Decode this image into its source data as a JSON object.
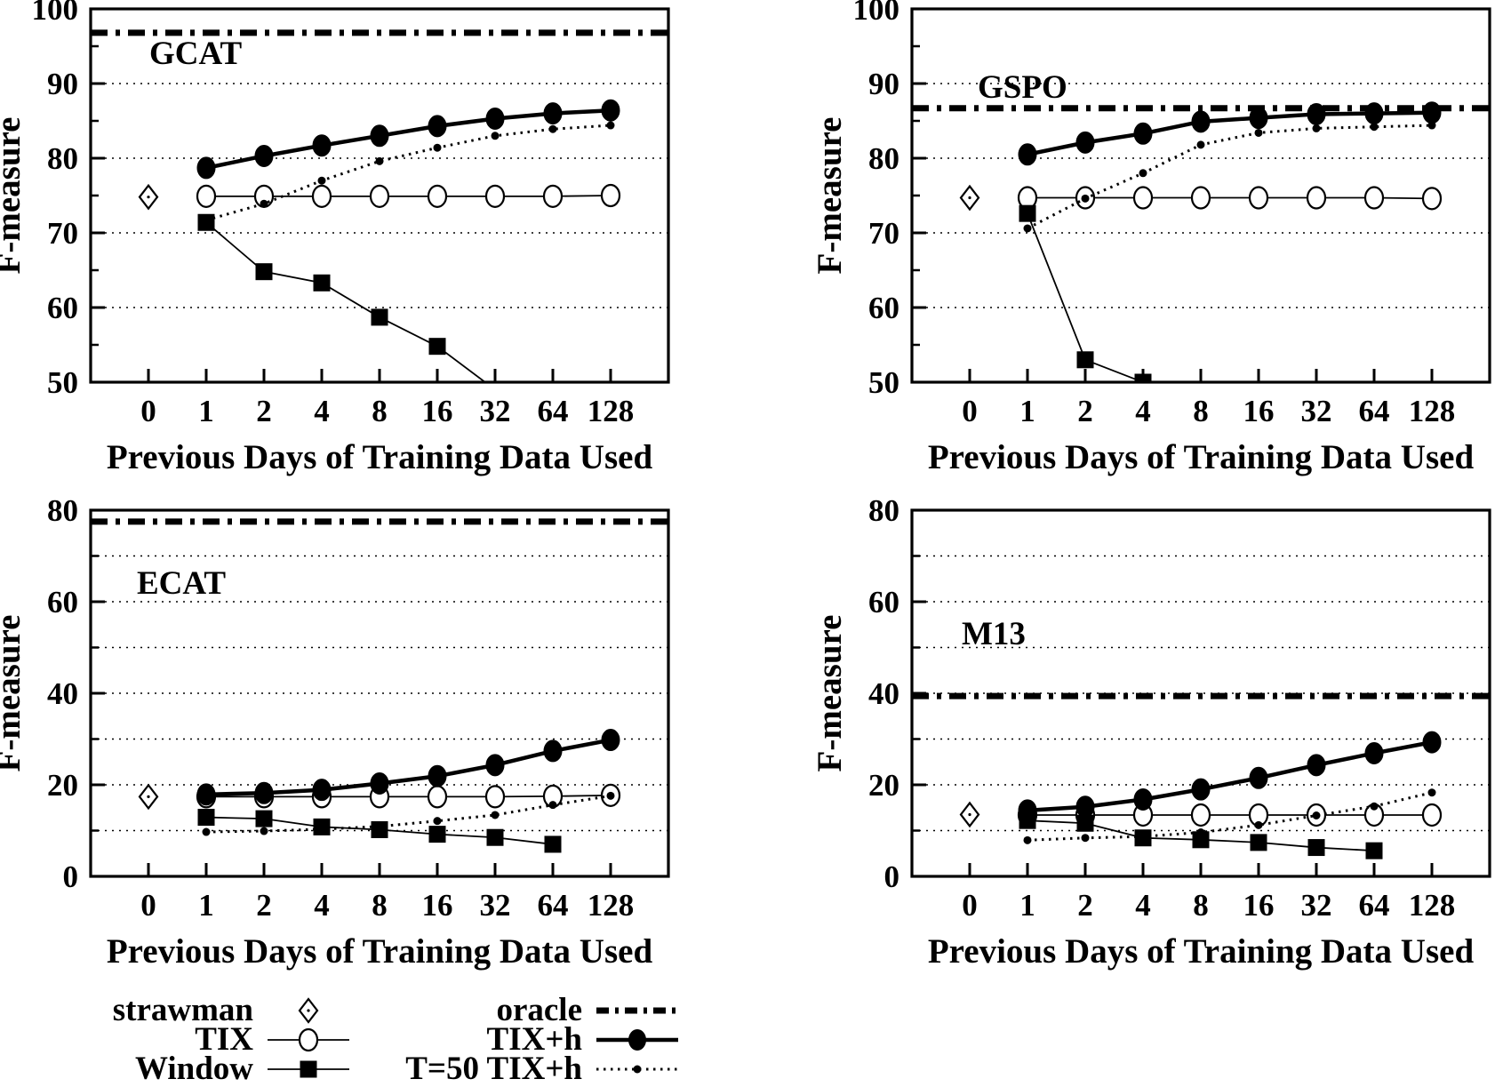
{
  "colors": {
    "foreground": "#000000",
    "background": "#ffffff"
  },
  "figure": {
    "x_axis_label": "Previous Days of Training Data Used",
    "y_axis_label": "F-measure",
    "x_tick_labels": [
      "0",
      "1",
      "2",
      "4",
      "8",
      "16",
      "32",
      "64",
      "128"
    ]
  },
  "legend": {
    "columns": [
      [
        {
          "label": "strawman"
        },
        {
          "label": "TIX"
        },
        {
          "label": "Window"
        }
      ],
      [
        {
          "label": "oracle"
        },
        {
          "label": "TIX+h"
        },
        {
          "label": "T=50 TIX+h"
        }
      ]
    ]
  },
  "chart_data": [
    {
      "type": "line",
      "title": "GCAT",
      "xlabel": "Previous Days of Training Data Used",
      "ylabel": "F-measure",
      "x_categories": [
        0,
        1,
        2,
        4,
        8,
        16,
        32,
        64,
        128
      ],
      "x_scale": "equally-spaced categories (powers of 2)",
      "ylim": [
        50,
        100
      ],
      "y_major_ticks": [
        50,
        60,
        70,
        80,
        90,
        100
      ],
      "y_minor_ticks": [
        55,
        65,
        75,
        85,
        95
      ],
      "y_gridlines": [
        60,
        70,
        80,
        90
      ],
      "series": [
        {
          "name": "oracle",
          "line": "thick-dash-dot",
          "y_const": 96.8
        },
        {
          "name": "TIX",
          "line": "thin-solid",
          "marker": "open-circle",
          "x": [
            1,
            2,
            4,
            8,
            16,
            32,
            64,
            128
          ],
          "y": [
            74.9,
            74.9,
            74.9,
            74.9,
            74.9,
            74.9,
            74.9,
            75.0
          ]
        },
        {
          "name": "Window",
          "line": "thin-solid",
          "marker": "filled-square",
          "x": [
            1,
            2,
            4,
            8,
            16,
            32
          ],
          "y": [
            71.4,
            64.8,
            63.3,
            58.7,
            54.8,
            49.0
          ],
          "note": "line exits below axis minimum between x=16 and x=32"
        },
        {
          "name": "T=50 TIX+h",
          "line": "dotted",
          "marker": "small-dot",
          "x": [
            1,
            2,
            4,
            8,
            16,
            32,
            64,
            128
          ],
          "y": [
            71.7,
            73.9,
            77.0,
            79.6,
            81.4,
            83.0,
            83.9,
            84.4
          ]
        },
        {
          "name": "TIX+h",
          "line": "thick-solid",
          "marker": "filled-circle",
          "x": [
            1,
            2,
            4,
            8,
            16,
            32,
            64,
            128
          ],
          "y": [
            78.7,
            80.3,
            81.7,
            83.0,
            84.3,
            85.3,
            86.0,
            86.4
          ]
        },
        {
          "name": "strawman",
          "marker": "open-diamond",
          "x": [
            0
          ],
          "y": [
            74.8
          ]
        }
      ]
    },
    {
      "type": "line",
      "title": "GSPO",
      "xlabel": "Previous Days of Training Data Used",
      "ylabel": "F-measure",
      "x_categories": [
        0,
        1,
        2,
        4,
        8,
        16,
        32,
        64,
        128
      ],
      "x_scale": "equally-spaced categories (powers of 2)",
      "ylim": [
        50,
        100
      ],
      "y_major_ticks": [
        50,
        60,
        70,
        80,
        90,
        100
      ],
      "y_minor_ticks": [
        55,
        65,
        75,
        85,
        95
      ],
      "y_gridlines": [
        60,
        70,
        80,
        90
      ],
      "series": [
        {
          "name": "oracle",
          "line": "thick-dash-dot",
          "y_const": 86.7
        },
        {
          "name": "TIX",
          "line": "thin-solid",
          "marker": "open-circle",
          "x": [
            1,
            2,
            4,
            8,
            16,
            32,
            64,
            128
          ],
          "y": [
            74.7,
            74.7,
            74.7,
            74.7,
            74.7,
            74.7,
            74.7,
            74.6
          ]
        },
        {
          "name": "Window",
          "line": "thin-solid",
          "marker": "filled-square",
          "x": [
            1,
            2,
            4
          ],
          "y": [
            72.6,
            53.0,
            50.0
          ]
        },
        {
          "name": "T=50 TIX+h",
          "line": "dotted",
          "marker": "small-dot",
          "x": [
            1,
            2,
            4,
            8,
            16,
            32,
            64,
            128
          ],
          "y": [
            70.6,
            74.6,
            78.0,
            81.8,
            83.4,
            84.0,
            84.2,
            84.4
          ]
        },
        {
          "name": "TIX+h",
          "line": "thick-solid",
          "marker": "filled-circle",
          "x": [
            1,
            2,
            4,
            8,
            16,
            32,
            64,
            128
          ],
          "y": [
            80.5,
            82.1,
            83.3,
            84.9,
            85.4,
            85.9,
            86.0,
            86.1
          ]
        },
        {
          "name": "strawman",
          "marker": "open-diamond",
          "x": [
            0
          ],
          "y": [
            74.7
          ]
        }
      ]
    },
    {
      "type": "line",
      "title": "ECAT",
      "xlabel": "Previous Days of Training Data Used",
      "ylabel": "F-measure",
      "x_categories": [
        0,
        1,
        2,
        4,
        8,
        16,
        32,
        64,
        128
      ],
      "x_scale": "equally-spaced categories (powers of 2)",
      "ylim": [
        0,
        80
      ],
      "y_major_ticks": [
        0,
        20,
        40,
        60,
        80
      ],
      "y_minor_ticks": [
        10,
        30,
        50,
        70
      ],
      "y_gridlines": [
        10,
        20,
        30,
        40,
        50,
        60,
        70
      ],
      "series": [
        {
          "name": "oracle",
          "line": "thick-dash-dot",
          "y_const": 77.5
        },
        {
          "name": "TIX",
          "line": "thin-solid",
          "marker": "open-circle",
          "x": [
            1,
            2,
            4,
            8,
            16,
            32,
            64,
            128
          ],
          "y": [
            17.4,
            17.4,
            17.4,
            17.4,
            17.4,
            17.4,
            17.5,
            17.7
          ]
        },
        {
          "name": "Window",
          "line": "thin-solid",
          "marker": "filled-square",
          "x": [
            1,
            2,
            4,
            8,
            16,
            32,
            64
          ],
          "y": [
            12.9,
            12.6,
            10.8,
            10.2,
            9.2,
            8.5,
            7.0
          ]
        },
        {
          "name": "T=50 TIX+h",
          "line": "dotted",
          "marker": "small-dot",
          "x": [
            1,
            2,
            4,
            8,
            16,
            32,
            64,
            128
          ],
          "y": [
            9.7,
            9.9,
            10.3,
            10.9,
            12.1,
            13.4,
            15.6,
            17.6
          ]
        },
        {
          "name": "TIX+h",
          "line": "thick-solid",
          "marker": "filled-circle",
          "x": [
            1,
            2,
            4,
            8,
            16,
            32,
            64,
            128
          ],
          "y": [
            17.9,
            18.2,
            18.9,
            20.3,
            21.9,
            24.3,
            27.4,
            29.8
          ]
        },
        {
          "name": "strawman",
          "marker": "open-diamond",
          "x": [
            0
          ],
          "y": [
            17.4
          ]
        }
      ]
    },
    {
      "type": "line",
      "title": "M13",
      "xlabel": "Previous Days of Training Data Used",
      "ylabel": "F-measure",
      "x_categories": [
        0,
        1,
        2,
        4,
        8,
        16,
        32,
        64,
        128
      ],
      "x_scale": "equally-spaced categories (powers of 2)",
      "ylim": [
        0,
        80
      ],
      "y_major_ticks": [
        0,
        20,
        40,
        60,
        80
      ],
      "y_minor_ticks": [
        10,
        30,
        50,
        70
      ],
      "y_gridlines": [
        10,
        20,
        30,
        40,
        50,
        60,
        70
      ],
      "series": [
        {
          "name": "oracle",
          "line": "thick-dash-dot",
          "y_const": 39.4
        },
        {
          "name": "TIX",
          "line": "thin-solid",
          "marker": "open-circle",
          "x": [
            1,
            2,
            4,
            8,
            16,
            32,
            64,
            128
          ],
          "y": [
            13.4,
            13.4,
            13.4,
            13.4,
            13.4,
            13.4,
            13.4,
            13.4
          ]
        },
        {
          "name": "Window",
          "line": "thin-solid",
          "marker": "filled-square",
          "x": [
            1,
            2,
            4,
            8,
            16,
            32,
            64
          ],
          "y": [
            12.2,
            11.6,
            8.4,
            8.0,
            7.4,
            6.3,
            5.6
          ]
        },
        {
          "name": "T=50 TIX+h",
          "line": "dotted",
          "marker": "small-dot",
          "x": [
            1,
            2,
            4,
            8,
            16,
            32,
            64,
            128
          ],
          "y": [
            7.9,
            8.4,
            8.7,
            9.6,
            11.2,
            13.3,
            15.3,
            18.3
          ]
        },
        {
          "name": "TIX+h",
          "line": "thick-solid",
          "marker": "filled-circle",
          "x": [
            1,
            2,
            4,
            8,
            16,
            32,
            64,
            128
          ],
          "y": [
            14.4,
            15.2,
            16.8,
            19.0,
            21.5,
            24.3,
            26.9,
            29.3
          ]
        },
        {
          "name": "strawman",
          "marker": "open-diamond",
          "x": [
            0
          ],
          "y": [
            13.5
          ]
        }
      ]
    }
  ]
}
